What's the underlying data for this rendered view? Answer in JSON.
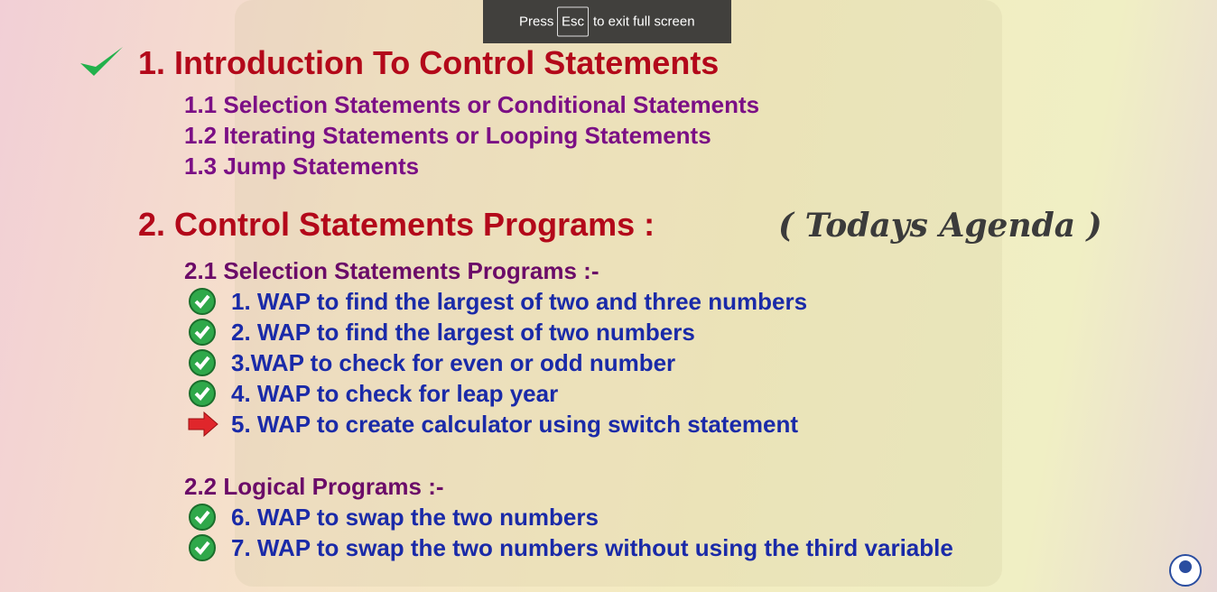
{
  "toast": {
    "before": "Press",
    "key": "Esc",
    "after": "to exit full screen"
  },
  "slide": {
    "sections": [
      {
        "title": "1. Introduction To Control Statements",
        "items": [
          "1.1 Selection Statements or Conditional Statements",
          "1.2 Iterating Statements or Looping Statements",
          "1.3 Jump Statements"
        ]
      },
      {
        "title": "2. Control Statements Programs :",
        "note": "( Todays Agenda )",
        "subsections": [
          {
            "title": "2.1 Selection Statements Programs :-",
            "items": [
              "1. WAP to find the largest of two and three numbers",
              "2. WAP to find the largest of two numbers",
              "3.WAP to check for even or odd number",
              "4. WAP to check for leap year",
              "5. WAP to create calculator using switch statement"
            ]
          },
          {
            "title": "2.2 Logical Programs :-",
            "items": [
              "6. WAP to swap the two numbers",
              "7. WAP to swap the two numbers without using the third variable"
            ]
          }
        ]
      }
    ]
  }
}
